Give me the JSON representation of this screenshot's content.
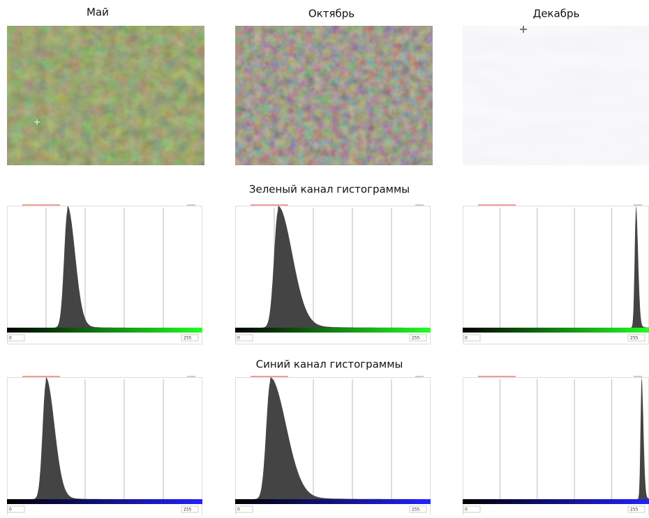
{
  "columns": [
    {
      "title": "Май"
    },
    {
      "title": "Октябрь"
    },
    {
      "title": "Декабрь"
    }
  ],
  "sections": [
    {
      "title": "Зеленый канал гистограммы",
      "panels": [
        {
          "min": 0,
          "max": 255
        },
        {
          "min": 0,
          "max": 255
        },
        {
          "min": 0,
          "max": 255
        }
      ]
    },
    {
      "title": "Синий канал гистограммы",
      "panels": [
        {
          "min": 0,
          "max": 255
        },
        {
          "min": 0,
          "max": 255
        },
        {
          "min": 0,
          "max": 255
        }
      ]
    }
  ]
}
